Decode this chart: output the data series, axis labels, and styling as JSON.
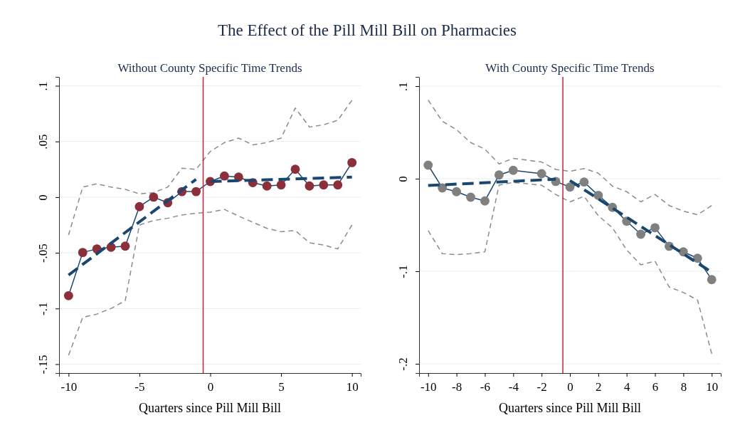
{
  "chart_data": [
    {
      "type": "line",
      "title": "The Effect of the Pill Mill Bill on Pharmacies",
      "subtitle": "Without County Specific Time Trends",
      "xlabel": "Quarters since Pill Mill Bill",
      "grid": "y",
      "xlim": [
        -10.67,
        10.62
      ],
      "xticks": [
        -10,
        -5,
        0,
        5,
        10
      ],
      "ylim": [
        -0.158,
        0.108
      ],
      "yticks": [
        {
          "value": -0.15,
          "label": "-.15"
        },
        {
          "value": -0.1,
          "label": "-.1"
        },
        {
          "value": -0.05,
          "label": "-.05"
        },
        0,
        {
          "value": 0.05,
          "label": ".05"
        },
        {
          "value": 0.1,
          "label": ".1"
        }
      ],
      "ref_lines": [
        {
          "axis": "x",
          "value": -0.5,
          "color": "#c8203f"
        }
      ],
      "series": [
        {
          "type": "line",
          "color": "#8c8c8c",
          "line_style": "dashed",
          "marker": "none",
          "x": [
            -10,
            -9,
            -8,
            -7,
            -6,
            -5,
            -4,
            -3,
            -2,
            -1,
            0,
            1,
            2,
            3,
            4,
            5,
            6,
            7,
            8,
            9,
            10
          ],
          "values": [
            -0.034,
            0.009,
            0.012,
            0.009,
            0.007,
            0.003,
            0.004,
            0.009,
            0.026,
            0.025,
            0.041,
            0.049,
            0.053,
            0.047,
            0.049,
            0.053,
            0.08,
            0.063,
            0.065,
            0.069,
            0.087
          ]
        },
        {
          "type": "line",
          "color": "#8c8c8c",
          "line_style": "dashed",
          "marker": "none",
          "x": [
            -10,
            -9,
            -8,
            -7,
            -6,
            -5,
            -4,
            -3,
            -2,
            -1,
            0,
            1,
            2,
            3,
            4,
            5,
            6,
            7,
            8,
            9,
            10
          ],
          "values": [
            -0.142,
            -0.108,
            -0.105,
            -0.1,
            -0.093,
            -0.025,
            -0.021,
            -0.019,
            -0.016,
            -0.0145,
            -0.0135,
            -0.011,
            -0.017,
            -0.0225,
            -0.028,
            -0.031,
            -0.03,
            -0.041,
            -0.043,
            -0.0465,
            -0.025
          ]
        },
        {
          "type": "line",
          "color": "#1a476f",
          "line_style": "solid",
          "marker": "none",
          "x": [
            -10,
            -9,
            -8,
            -7,
            -6,
            -5,
            -4,
            -3,
            -2,
            -1,
            0,
            1,
            2,
            3,
            4,
            5,
            6,
            7,
            8,
            9,
            10
          ],
          "values": [
            -0.0885,
            -0.0497,
            -0.0465,
            -0.045,
            -0.044,
            -0.0085,
            0,
            -0.005,
            0.005,
            0.005,
            0.014,
            0.019,
            0.018,
            0.013,
            0.01,
            0.011,
            0.025,
            0.01,
            0.011,
            0.011,
            0.031
          ]
        },
        {
          "type": "scatter",
          "color": "#8b2f3a",
          "marker": "circle",
          "x": [
            -10,
            -9,
            -8,
            -7,
            -6,
            -5,
            -4,
            -3,
            -2,
            -1,
            0,
            1,
            2,
            3,
            4,
            5,
            6,
            7,
            8,
            9,
            10
          ],
          "values": [
            -0.0885,
            -0.0497,
            -0.0465,
            -0.045,
            -0.044,
            -0.0085,
            0,
            -0.005,
            0.005,
            0.005,
            0.014,
            0.019,
            0.018,
            0.013,
            0.01,
            0.011,
            0.025,
            0.01,
            0.011,
            0.011,
            0.031
          ]
        },
        {
          "type": "line",
          "color": "#1a476f",
          "line_style": "dashed",
          "marker": "none",
          "x": [
            -10,
            -1
          ],
          "values": [
            -0.07,
            0.016
          ]
        },
        {
          "type": "line",
          "color": "#1a476f",
          "line_style": "dashed",
          "marker": "none",
          "x": [
            0,
            10
          ],
          "values": [
            0.014,
            0.018
          ]
        }
      ]
    },
    {
      "type": "line",
      "subtitle": "With County Specific Time Trends",
      "xlabel": "Quarters since Pill Mill Bill",
      "grid": "y",
      "xlim": [
        -10.64,
        10.64
      ],
      "xticks": [
        -10,
        -8,
        -6,
        -4,
        -2,
        0,
        2,
        4,
        6,
        8,
        10
      ],
      "ylim": [
        -0.21,
        0.11
      ],
      "yticks": [
        {
          "value": -0.2,
          "label": "-.2"
        },
        {
          "value": -0.1,
          "label": "-.1"
        },
        0,
        {
          "value": 0.1,
          "label": ".1"
        }
      ],
      "ref_lines": [
        {
          "axis": "x",
          "value": -0.5,
          "color": "#c8203f"
        }
      ],
      "series": [
        {
          "type": "line",
          "color": "#8c8c8c",
          "line_style": "dashed",
          "marker": "none",
          "x": [
            -10,
            -9,
            -8,
            -7,
            -6,
            -5,
            -4,
            -2,
            -1,
            0,
            1,
            2,
            3,
            4,
            5,
            6,
            7,
            8,
            9,
            10
          ],
          "values": [
            0.085,
            0.062,
            0.053,
            0.039,
            0.032,
            0.016,
            0.022,
            0.018,
            0.01,
            0.008,
            0.011,
            0.006,
            -0.008,
            -0.014,
            -0.025,
            -0.017,
            -0.029,
            -0.035,
            -0.039,
            -0.029
          ]
        },
        {
          "type": "line",
          "color": "#8c8c8c",
          "line_style": "dashed",
          "marker": "none",
          "x": [
            -10,
            -9,
            -8,
            -7,
            -6,
            -5,
            -4,
            -2,
            -1,
            0,
            1,
            2,
            3,
            4,
            5,
            6,
            7,
            8,
            9,
            10
          ],
          "values": [
            -0.056,
            -0.081,
            -0.082,
            -0.081,
            -0.079,
            -0.007,
            -0.004,
            -0.007,
            -0.017,
            -0.025,
            -0.019,
            -0.04,
            -0.053,
            -0.077,
            -0.093,
            -0.089,
            -0.117,
            -0.123,
            -0.131,
            -0.189
          ]
        },
        {
          "type": "line",
          "color": "#1a476f",
          "line_style": "solid",
          "marker": "none",
          "x": [
            -10,
            -9,
            -8,
            -7,
            -6,
            -5,
            -4,
            -2,
            -1,
            0,
            1,
            2,
            3,
            4,
            5,
            6,
            7,
            8,
            9,
            10
          ],
          "values": [
            0.0146,
            -0.01,
            -0.014,
            -0.02,
            -0.024,
            0.004,
            0.009,
            0.0054,
            -0.003,
            -0.009,
            -0.0036,
            -0.018,
            -0.031,
            -0.046,
            -0.06,
            -0.053,
            -0.073,
            -0.079,
            -0.086,
            -0.109
          ]
        },
        {
          "type": "scatter",
          "color": "#808080",
          "marker": "circle",
          "x": [
            -10,
            -9,
            -8,
            -7,
            -6,
            -5,
            -4,
            -2,
            -1,
            0,
            1,
            2,
            3,
            4,
            5,
            6,
            7,
            8,
            9,
            10
          ],
          "values": [
            0.0146,
            -0.01,
            -0.014,
            -0.02,
            -0.024,
            0.004,
            0.009,
            0.0054,
            -0.003,
            -0.009,
            -0.0036,
            -0.018,
            -0.031,
            -0.046,
            -0.06,
            -0.053,
            -0.073,
            -0.079,
            -0.086,
            -0.109
          ]
        },
        {
          "type": "line",
          "color": "#1a476f",
          "line_style": "dashed",
          "marker": "none",
          "x": [
            -10,
            -1
          ],
          "values": [
            -0.0074,
            -0.0005
          ]
        },
        {
          "type": "line",
          "color": "#1a476f",
          "line_style": "dashed",
          "marker": "none",
          "x": [
            0,
            10
          ],
          "values": [
            -0.002,
            -0.101
          ]
        }
      ]
    }
  ]
}
